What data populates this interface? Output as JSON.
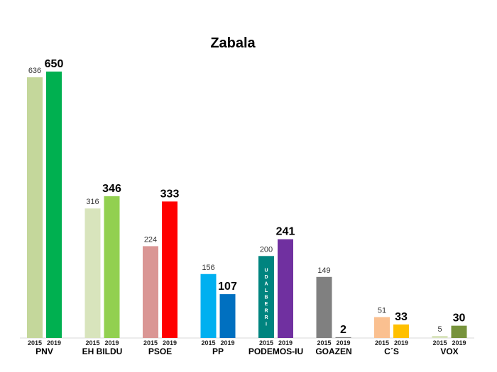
{
  "chart_data": {
    "type": "bar",
    "title": "Zabala",
    "series_labels": [
      "2015",
      "2019"
    ],
    "categories": [
      "PNV",
      "EH BILDU",
      "PSOE",
      "PP",
      "PODEMOS-IU",
      "GOAZEN",
      "C´S",
      "VOX"
    ],
    "values_2015": [
      636,
      316,
      224,
      156,
      200,
      149,
      51,
      5
    ],
    "values_2019": [
      650,
      346,
      333,
      107,
      241,
      2,
      33,
      30
    ],
    "colors_2015": [
      "#c4d79b",
      "#d8e4bc",
      "#da9694",
      "#00b0f0",
      "#00847f",
      "#808080",
      "#fac090",
      "#d8e4bc"
    ],
    "colors_2019": [
      "#00b050",
      "#92d050",
      "#ff0000",
      "#0070c0",
      "#7030a0",
      "#808080",
      "#ffc000",
      "#77933c"
    ],
    "bar_note": {
      "category": "PODEMOS-IU",
      "series": "2015",
      "text": "UDALBERRI"
    },
    "ylim": [
      0,
      650
    ],
    "xlabel": "",
    "ylabel": "",
    "grid": false,
    "legend": "none"
  }
}
